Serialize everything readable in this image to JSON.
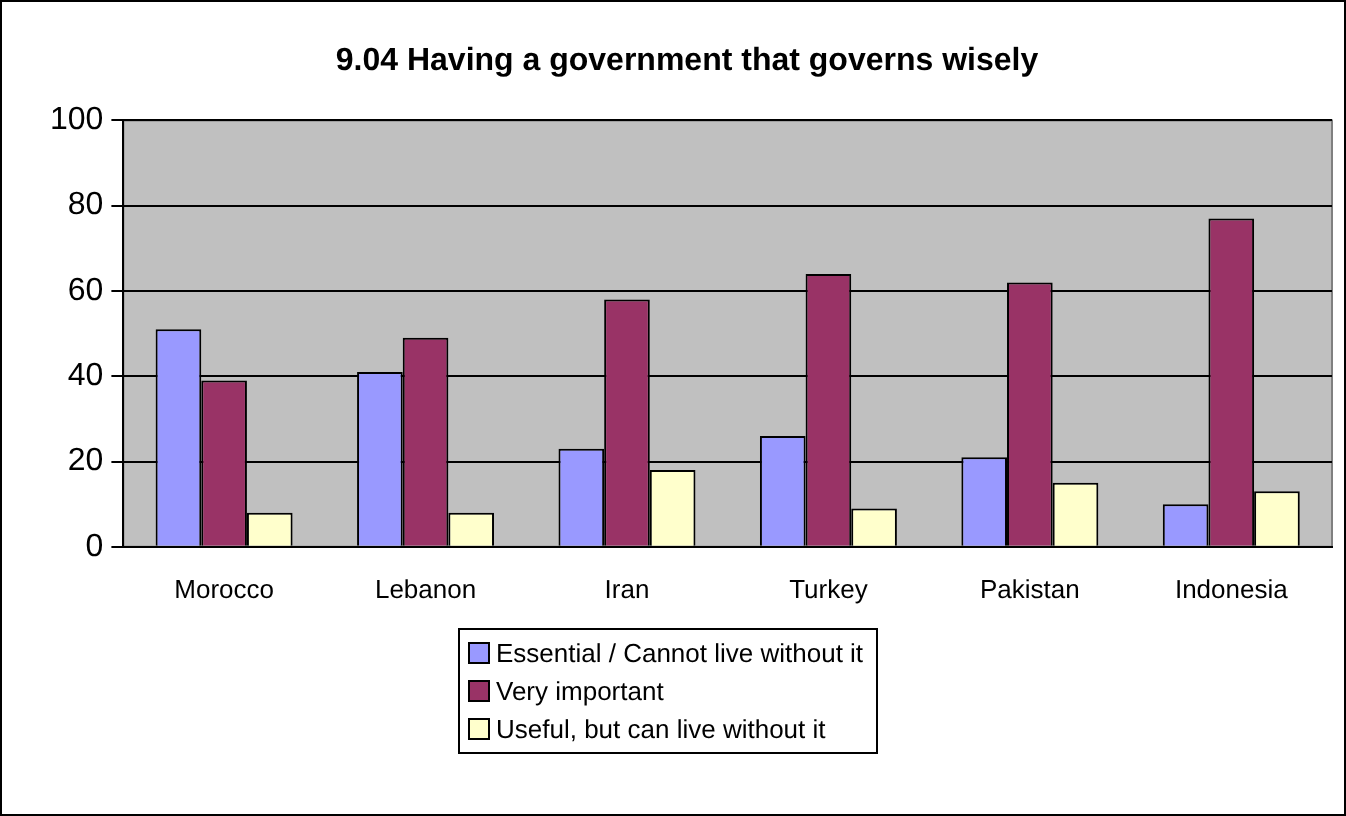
{
  "chart_data": {
    "type": "bar",
    "title": "9.04 Having a government that governs wisely",
    "categories": [
      "Morocco",
      "Lebanon",
      "Iran",
      "Turkey",
      "Pakistan",
      "Indonesia"
    ],
    "series": [
      {
        "name": "Essential / Cannot live without it",
        "color": "#9999ff",
        "values": [
          51,
          41,
          23,
          26,
          21,
          10
        ]
      },
      {
        "name": "Very important",
        "color": "#993366",
        "values": [
          39,
          49,
          58,
          64,
          62,
          77
        ]
      },
      {
        "name": "Useful, but can live without it",
        "color": "#ffffcc",
        "values": [
          8,
          8,
          18,
          9,
          15,
          13
        ]
      }
    ],
    "ylim": [
      0,
      100
    ],
    "yticks": [
      0,
      20,
      40,
      60,
      80,
      100
    ],
    "grid": "y",
    "legend": "bottom"
  }
}
